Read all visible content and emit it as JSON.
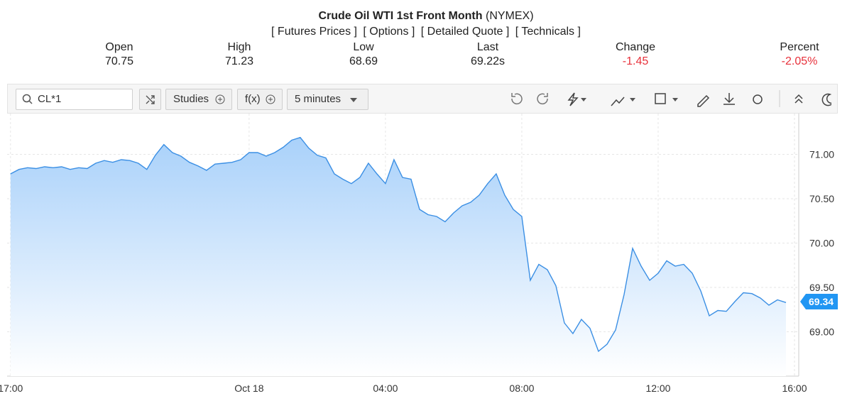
{
  "header": {
    "title": "Crude Oil WTI 1st Front Month",
    "exchange": "(NYMEX)",
    "links": [
      "[ Futures Prices ]",
      "[ Options ]",
      "[ Detailed Quote ]",
      "[ Technicals ]"
    ],
    "quotes": [
      {
        "label": "Open",
        "value": "70.75"
      },
      {
        "label": "High",
        "value": "71.23"
      },
      {
        "label": "Low",
        "value": "68.69"
      },
      {
        "label": "Last",
        "value": "69.22s"
      },
      {
        "label": "Change",
        "value": "-1.45",
        "color": "#e8313b"
      },
      {
        "label": "Percent",
        "value": "-2.05%",
        "color": "#e8313b"
      }
    ]
  },
  "toolbar": {
    "symbol": "CL*1",
    "studies": "Studies",
    "function": "f(x)",
    "interval": "5 minutes"
  },
  "chart_data": {
    "type": "area",
    "color": "#3b8fe4",
    "grid": true,
    "values": [
      70.78,
      70.83,
      70.85,
      70.84,
      70.86,
      70.85,
      70.86,
      70.83,
      70.85,
      70.84,
      70.9,
      70.93,
      70.91,
      70.94,
      70.93,
      70.9,
      70.83,
      70.99,
      71.11,
      71.02,
      70.98,
      70.91,
      70.87,
      70.82,
      70.89,
      70.9,
      70.91,
      70.94,
      71.02,
      71.02,
      70.98,
      71.02,
      71.08,
      71.16,
      71.19,
      71.07,
      70.99,
      70.96,
      70.78,
      70.72,
      70.67,
      70.74,
      70.9,
      70.78,
      70.67,
      70.94,
      70.74,
      70.72,
      70.38,
      70.32,
      70.3,
      70.24,
      70.34,
      70.42,
      70.46,
      70.54,
      70.67,
      70.78,
      70.54,
      70.38,
      70.3,
      69.58,
      69.76,
      69.7,
      69.52,
      69.1,
      68.98,
      69.14,
      69.04,
      68.78,
      68.86,
      69.02,
      69.42,
      69.94,
      69.74,
      69.58,
      69.66,
      69.8,
      69.74,
      69.76,
      69.66,
      69.46,
      69.18,
      69.24,
      69.23,
      69.34,
      69.44,
      69.43,
      69.38,
      69.3,
      69.36,
      69.33
    ],
    "xlim": [
      -0.4,
      92.5
    ],
    "xticks": [
      {
        "value": 0,
        "label": "17:00"
      },
      {
        "value": 28,
        "label": "Oct 18"
      },
      {
        "value": 44,
        "label": "04:00"
      },
      {
        "value": 60,
        "label": "08:00"
      },
      {
        "value": 76,
        "label": "12:00"
      },
      {
        "value": 92,
        "label": "16:00"
      }
    ],
    "ylim": [
      68.5,
      71.46
    ],
    "yticks": [
      {
        "value": 69,
        "label": "69.00"
      },
      {
        "value": 69.5,
        "label": "69.50"
      },
      {
        "value": 70,
        "label": "70.00"
      },
      {
        "value": 70.5,
        "label": "70.50"
      },
      {
        "value": 71,
        "label": "71.00"
      }
    ],
    "current_price": 69.34
  }
}
